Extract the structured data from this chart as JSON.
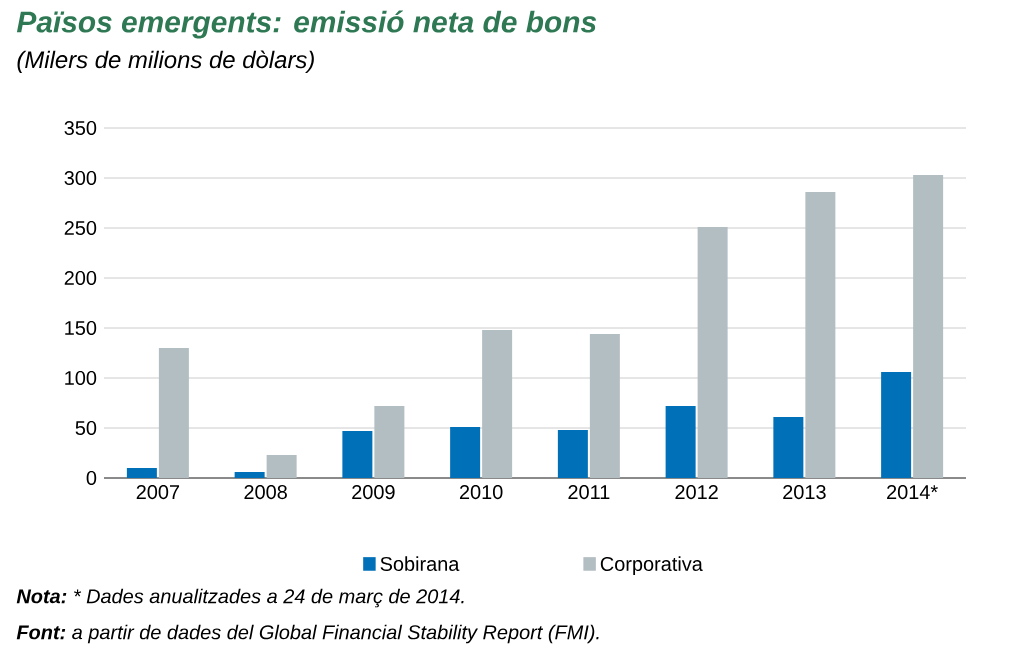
{
  "chart_data": {
    "type": "bar",
    "title": "Països emergents: emissió neta de bons",
    "subtitle": "(Milers de milions de dòlars)",
    "categories": [
      "2007",
      "2008",
      "2009",
      "2010",
      "2011",
      "2012",
      "2013",
      "2014*"
    ],
    "series": [
      {
        "name": "Sobirana",
        "color": "#0070b8",
        "values": [
          10,
          6,
          47,
          51,
          48,
          72,
          61,
          106
        ]
      },
      {
        "name": "Corporativa",
        "color": "#b3bec3",
        "values": [
          130,
          23,
          72,
          148,
          144,
          251,
          286,
          303
        ]
      }
    ],
    "ylim": [
      0,
      350
    ],
    "yticks": [
      0,
      50,
      100,
      150,
      200,
      250,
      300,
      350
    ],
    "grid": "y",
    "legend": "bottom",
    "annotations": [
      "Nota:",
      "* Dades anualitzades a 24 de març de 2014.",
      "Font:",
      "a partir de dades del Global Financial Stability Report (FMI)."
    ]
  }
}
